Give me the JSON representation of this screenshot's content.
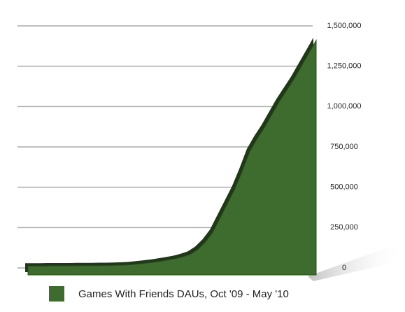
{
  "chart_data": {
    "type": "area",
    "series": [
      {
        "name": "Games With Friends DAUs, Oct '09 - May '10",
        "color": "#3e6b2e",
        "values": [
          12000,
          12000,
          12000,
          13000,
          13000,
          13000,
          13000,
          14000,
          14000,
          14000,
          15000,
          15000,
          16000,
          18000,
          20000,
          25000,
          30000,
          35000,
          42000,
          50000,
          58000,
          70000,
          85000,
          115000,
          160000,
          220000,
          310000,
          400000,
          490000,
          600000,
          720000,
          800000,
          870000,
          950000,
          1030000,
          1100000,
          1170000,
          1250000,
          1330000,
          1410000
        ]
      }
    ],
    "ylim": [
      0,
      1500000
    ],
    "yticks": [
      0,
      {
        "value": 250000,
        "label": "250,000"
      },
      {
        "value": 500000,
        "label": "500,000"
      },
      {
        "value": 750000,
        "label": "750,000"
      },
      {
        "value": 1000000,
        "label": "1,000,000"
      },
      {
        "value": 1250000,
        "label": "1,250,000"
      },
      {
        "value": 1500000,
        "label": "1,500,000"
      }
    ],
    "grid": true
  }
}
